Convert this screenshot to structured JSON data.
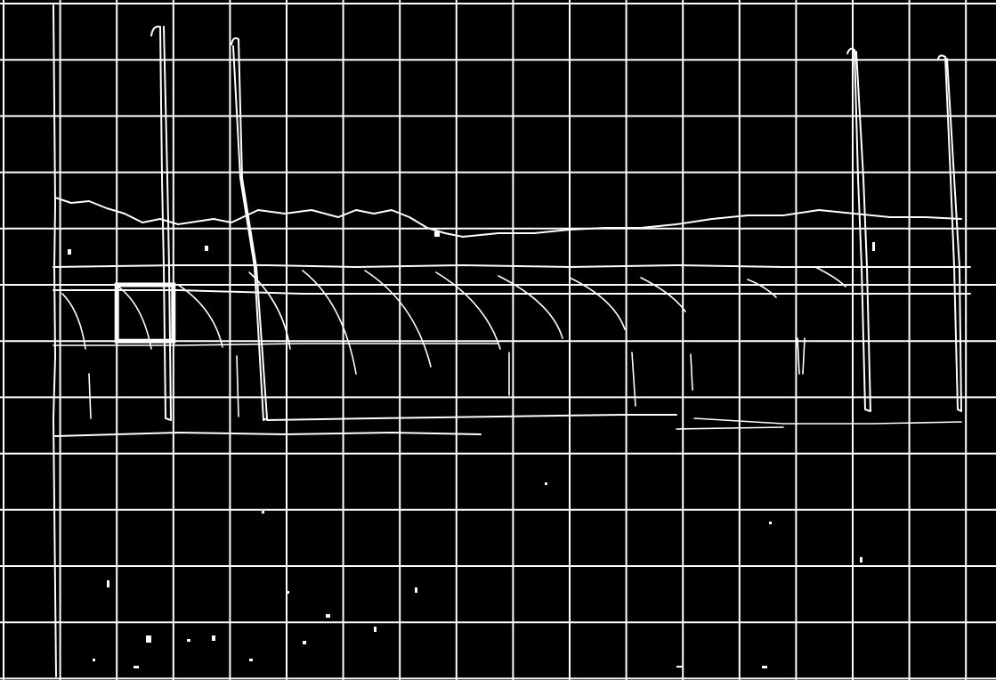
{
  "image": {
    "kind": "edge-detection-map",
    "background_color": "#000000",
    "edge_color": "#ffffff"
  },
  "grid": {
    "columns": 17,
    "rows": 12,
    "line_color": "#ffffff",
    "visible": true
  },
  "highlight": {
    "description_visible": false,
    "cell_column": 2,
    "cell_row": 5,
    "color": "#ffffff"
  }
}
